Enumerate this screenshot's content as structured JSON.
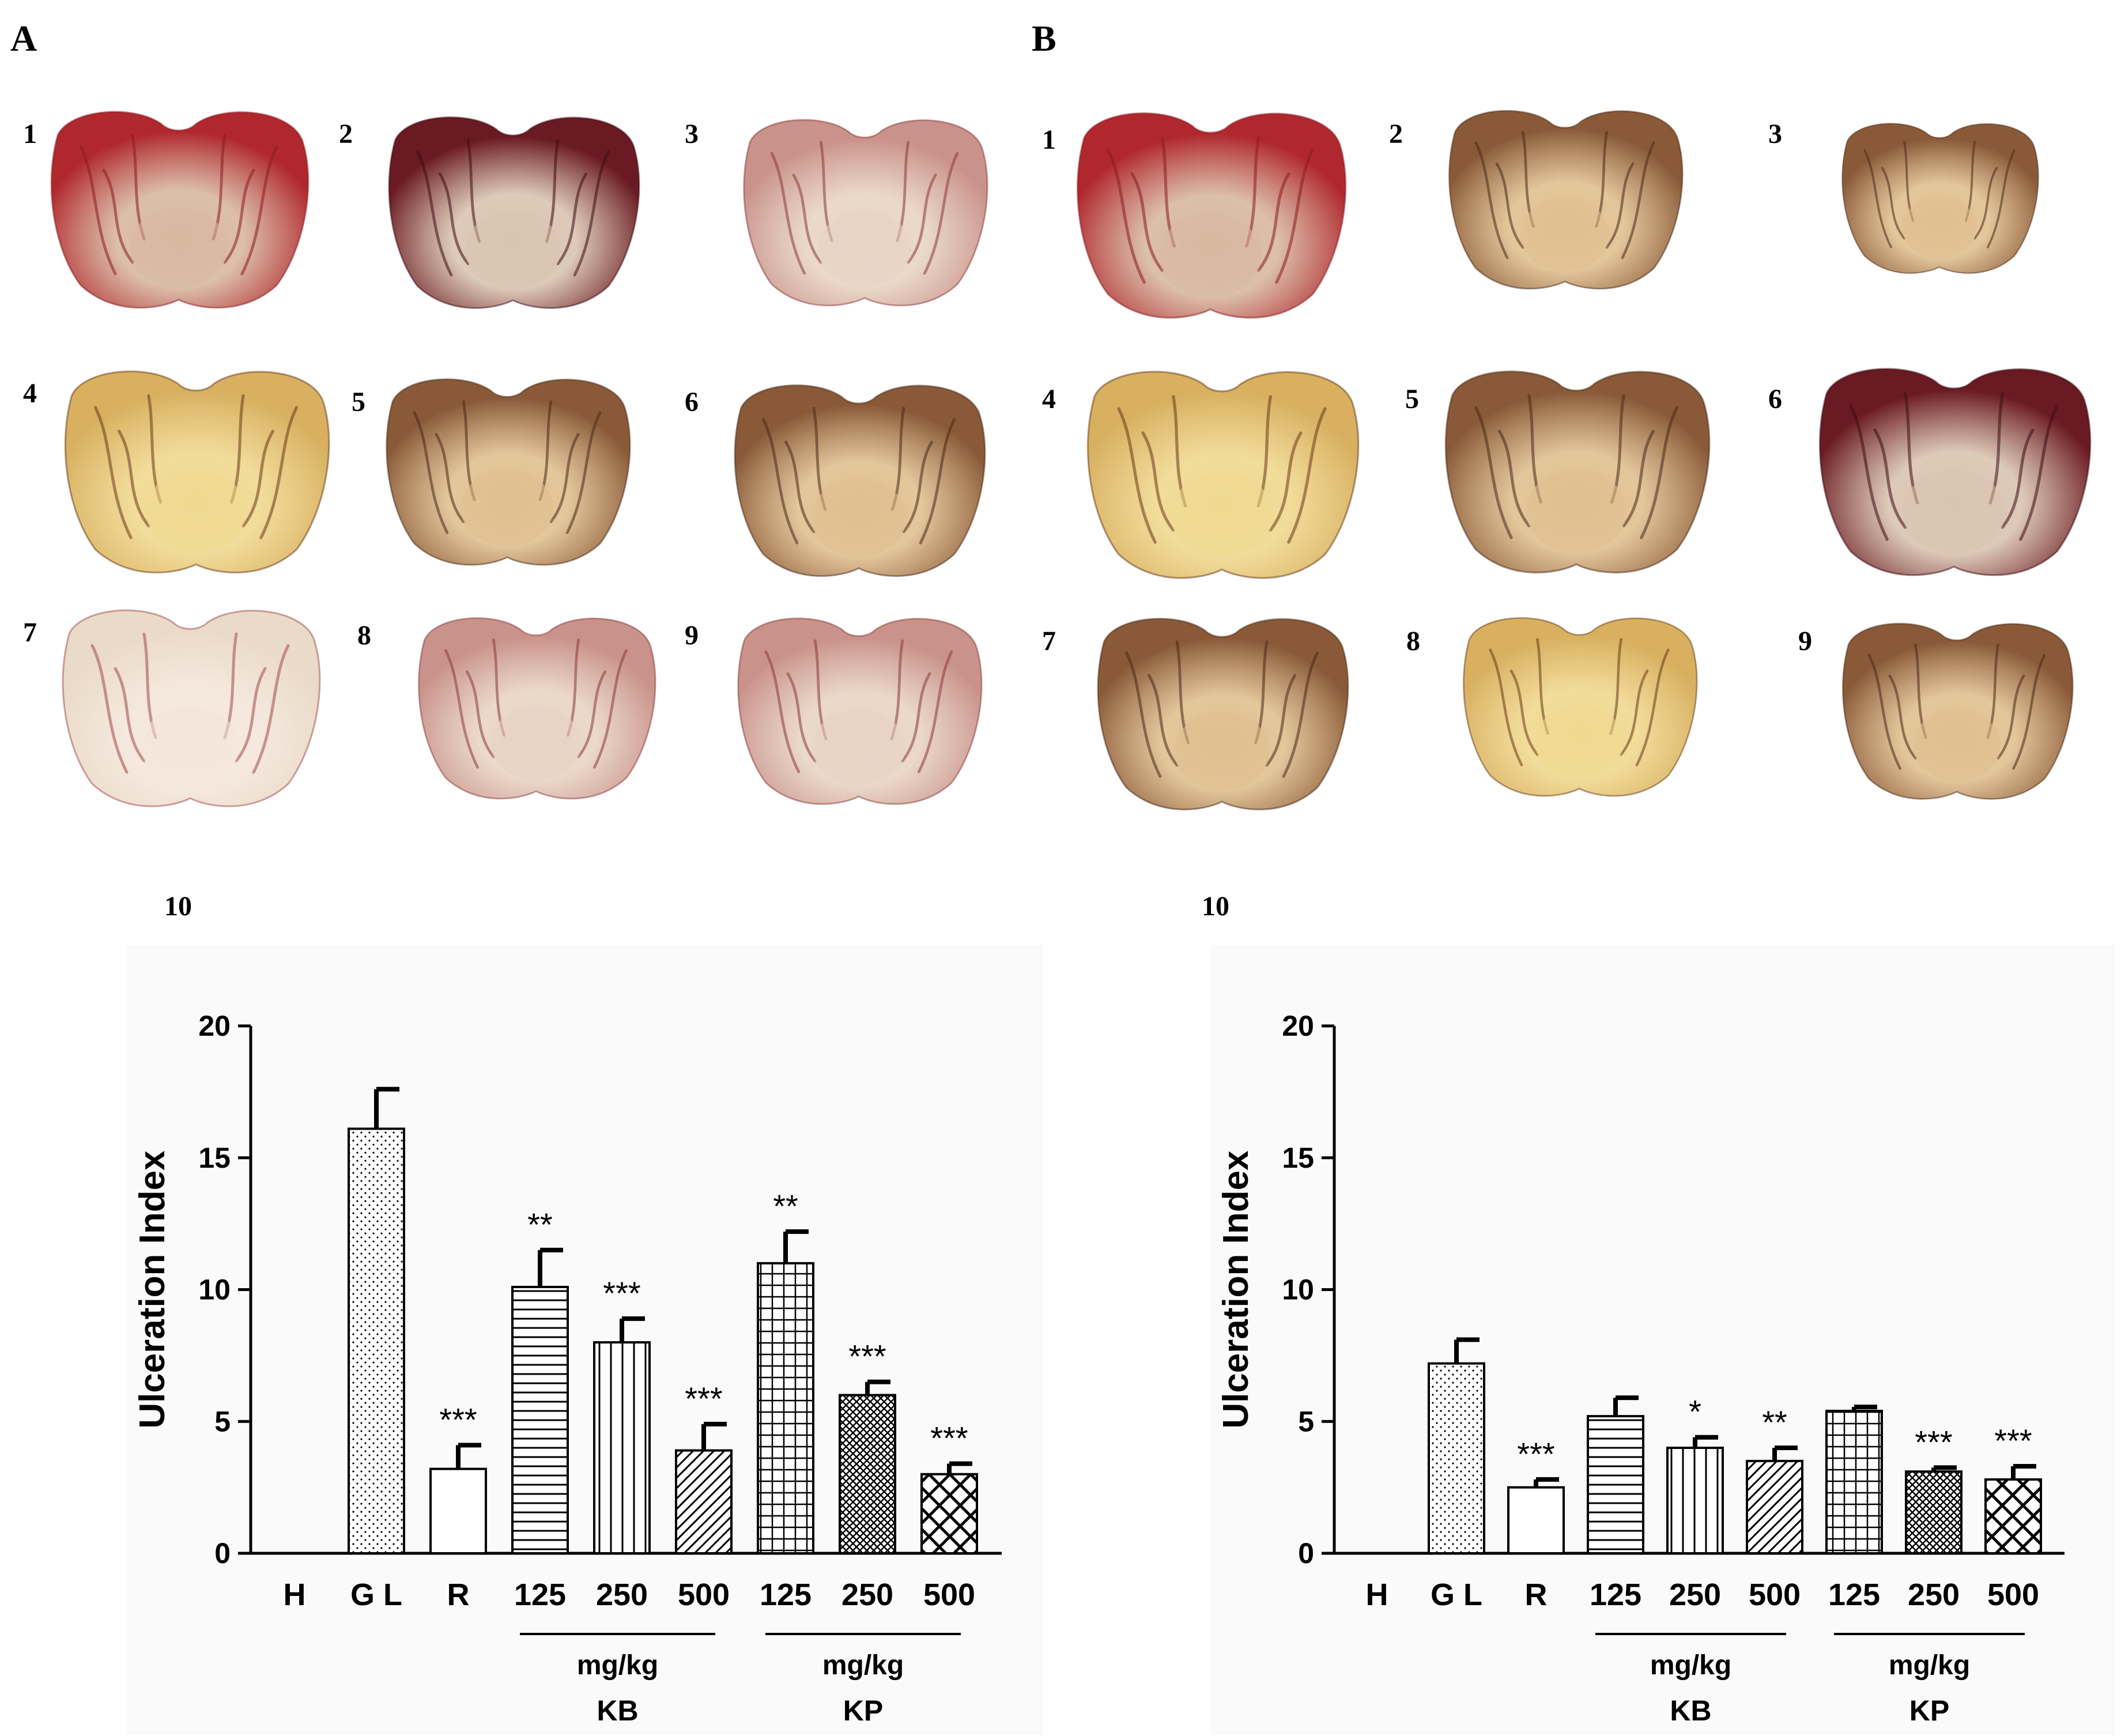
{
  "figure": {
    "panels": [
      {
        "letter": "A",
        "photo_labels": [
          "1",
          "2",
          "3",
          "4",
          "5",
          "6",
          "7",
          "8",
          "9"
        ],
        "chart_label": "10"
      },
      {
        "letter": "B",
        "photo_labels": [
          "1",
          "2",
          "3",
          "4",
          "5",
          "6",
          "7",
          "8",
          "9"
        ],
        "chart_label": "10"
      }
    ]
  },
  "colors": {
    "tissue_red": "#b0282e",
    "tissue_dark": "#6a1a22",
    "tissue_pink": "#c9928a",
    "tissue_brown": "#8a5a38",
    "tissue_yellow": "#d8b060",
    "tissue_pale": "#eadac8"
  },
  "chart_data": [
    {
      "type": "bar",
      "title": "",
      "ylabel": "Ulceration Index",
      "xlabel": "",
      "ylim": [
        0,
        20
      ],
      "yticks": [
        0,
        5,
        10,
        15,
        20
      ],
      "categories": [
        "H",
        "G L",
        "R",
        "125",
        "250",
        "500",
        "125",
        "250",
        "500"
      ],
      "values": [
        0,
        16.1,
        3.2,
        10.1,
        8.0,
        3.9,
        11.0,
        6.0,
        3.0
      ],
      "errors": [
        0,
        1.5,
        0.9,
        1.4,
        0.9,
        1.0,
        1.2,
        0.5,
        0.4
      ],
      "significance": [
        "",
        "",
        "***",
        "**",
        "***",
        "***",
        "**",
        "***",
        "***"
      ],
      "patterns": [
        "none",
        "dots",
        "none",
        "hlines",
        "vlines",
        "diag",
        "grid",
        "dense",
        "cross"
      ],
      "groups": [
        {
          "unit": "mg/kg",
          "name": "KB",
          "from": 3,
          "to": 5
        },
        {
          "unit": "mg/kg",
          "name": "KP",
          "from": 6,
          "to": 8
        }
      ]
    },
    {
      "type": "bar",
      "title": "",
      "ylabel": "Ulceration Index",
      "xlabel": "",
      "ylim": [
        0,
        20
      ],
      "yticks": [
        0,
        5,
        10,
        15,
        20
      ],
      "categories": [
        "H",
        "G L",
        "R",
        "125",
        "250",
        "500",
        "125",
        "250",
        "500"
      ],
      "values": [
        0,
        7.2,
        2.5,
        5.2,
        4.0,
        3.5,
        5.4,
        3.1,
        2.8
      ],
      "errors": [
        0,
        0.9,
        0.3,
        0.7,
        0.4,
        0.5,
        0.15,
        0.15,
        0.5
      ],
      "significance": [
        "",
        "",
        "***",
        "",
        "*",
        "**",
        "",
        "***",
        "***"
      ],
      "patterns": [
        "none",
        "dots",
        "none",
        "hlines",
        "vlines",
        "diag",
        "grid",
        "dense",
        "cross"
      ],
      "groups": [
        {
          "unit": "mg/kg",
          "name": "KB",
          "from": 3,
          "to": 5
        },
        {
          "unit": "mg/kg",
          "name": "KP",
          "from": 6,
          "to": 8
        }
      ]
    }
  ]
}
